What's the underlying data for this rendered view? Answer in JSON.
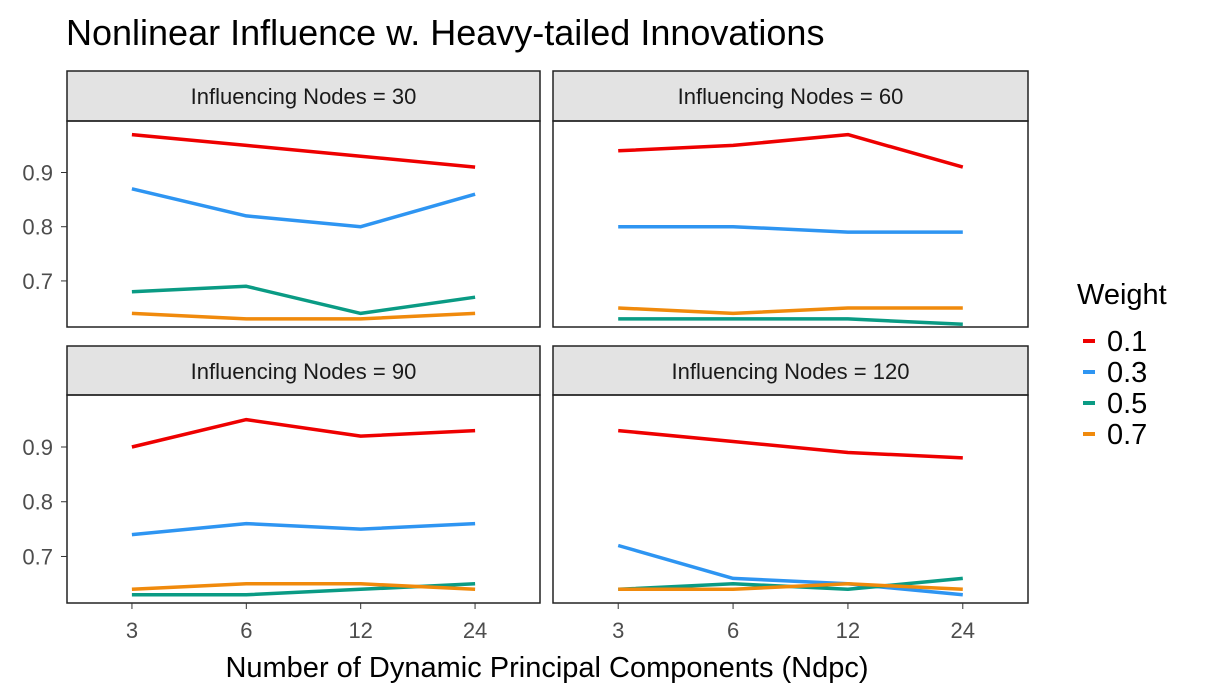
{
  "chart_data": {
    "type": "line",
    "title": "Nonlinear Influence w. Heavy-tailed Innovations",
    "xlabel": "Number of Dynamic Principal Components (Ndpc)",
    "ylabel": "",
    "categories": [
      "3",
      "6",
      "12",
      "24"
    ],
    "yticks": [
      "0.7",
      "0.8",
      "0.9"
    ],
    "ylim": [
      0.615,
      0.995
    ],
    "grid": false,
    "legend": {
      "title": "Weight",
      "position": "right",
      "entries": [
        {
          "label": "0.1",
          "color": "#ee0000"
        },
        {
          "label": "0.3",
          "color": "#2e95f2"
        },
        {
          "label": "0.5",
          "color": "#0a9b84"
        },
        {
          "label": "0.7",
          "color": "#f08a0c"
        }
      ]
    },
    "panels": [
      {
        "label": "Influencing Nodes = 30",
        "series": [
          {
            "name": "0.1",
            "values": [
              0.97,
              0.95,
              0.93,
              0.91
            ]
          },
          {
            "name": "0.3",
            "values": [
              0.87,
              0.82,
              0.8,
              0.86
            ]
          },
          {
            "name": "0.5",
            "values": [
              0.68,
              0.69,
              0.64,
              0.67
            ]
          },
          {
            "name": "0.7",
            "values": [
              0.64,
              0.63,
              0.63,
              0.64
            ]
          }
        ]
      },
      {
        "label": "Influencing Nodes = 60",
        "series": [
          {
            "name": "0.1",
            "values": [
              0.94,
              0.95,
              0.97,
              0.91
            ]
          },
          {
            "name": "0.3",
            "values": [
              0.8,
              0.8,
              0.79,
              0.79
            ]
          },
          {
            "name": "0.5",
            "values": [
              0.63,
              0.63,
              0.63,
              0.62
            ]
          },
          {
            "name": "0.7",
            "values": [
              0.65,
              0.64,
              0.65,
              0.65
            ]
          }
        ]
      },
      {
        "label": "Influencing Nodes = 90",
        "series": [
          {
            "name": "0.1",
            "values": [
              0.9,
              0.95,
              0.92,
              0.93
            ]
          },
          {
            "name": "0.3",
            "values": [
              0.74,
              0.76,
              0.75,
              0.76
            ]
          },
          {
            "name": "0.5",
            "values": [
              0.63,
              0.63,
              0.64,
              0.65
            ]
          },
          {
            "name": "0.7",
            "values": [
              0.64,
              0.65,
              0.65,
              0.64
            ]
          }
        ]
      },
      {
        "label": "Influencing Nodes = 120",
        "series": [
          {
            "name": "0.1",
            "values": [
              0.93,
              0.91,
              0.89,
              0.88
            ]
          },
          {
            "name": "0.3",
            "values": [
              0.72,
              0.66,
              0.65,
              0.63
            ]
          },
          {
            "name": "0.5",
            "values": [
              0.64,
              0.65,
              0.64,
              0.66
            ]
          },
          {
            "name": "0.7",
            "values": [
              0.64,
              0.64,
              0.65,
              0.64
            ]
          }
        ]
      }
    ]
  }
}
